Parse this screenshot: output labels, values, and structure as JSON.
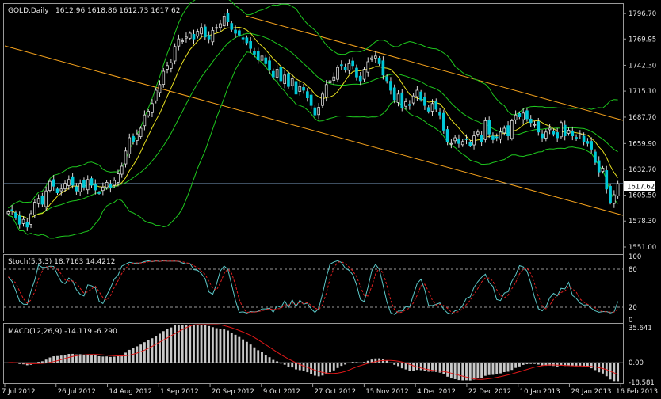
{
  "chart_data": {
    "type": "candlestick",
    "symbol_header": "GOLD,Daily",
    "ohlc_header": "1612.96 1618.86 1612.73 1617.62",
    "price_axis": {
      "range": [
        1546,
        1806
      ],
      "ticks": [
        "1796.70",
        "1769.95",
        "1742.30",
        "1715.10",
        "1687.70",
        "1659.90",
        "1632.70",
        "1605.50",
        "1578.30",
        "1551.00"
      ],
      "tick_values": [
        1796.7,
        1769.95,
        1742.3,
        1715.1,
        1687.7,
        1659.9,
        1632.7,
        1605.5,
        1578.3,
        1551.0
      ],
      "last_price_label": "1617.62",
      "last_price": 1617.62
    },
    "time_axis": {
      "labels": [
        "7 Jul 2012",
        "26 Jul 2012",
        "14 Aug 2012",
        "1 Sep 2012",
        "20 Sep 2012",
        "9 Oct 2012",
        "27 Oct 2012",
        "15 Nov 2012",
        "4 Dec 2012",
        "22 Dec 2012",
        "10 Jan 2013",
        "29 Jan 2013",
        "16 Feb 2013"
      ]
    },
    "closes": [
      1588,
      1590,
      1582,
      1575,
      1580,
      1572,
      1586,
      1598,
      1602,
      1596,
      1610,
      1620,
      1615,
      1608,
      1612,
      1618,
      1622,
      1616,
      1610,
      1618,
      1614,
      1622,
      1616,
      1611,
      1608,
      1614,
      1619,
      1613,
      1621,
      1628,
      1636,
      1652,
      1666,
      1662,
      1670,
      1676,
      1690,
      1694,
      1702,
      1716,
      1722,
      1736,
      1742,
      1745,
      1762,
      1770,
      1768,
      1772,
      1776,
      1770,
      1778,
      1782,
      1772,
      1770,
      1779,
      1782,
      1786,
      1794,
      1788,
      1780,
      1776,
      1774,
      1770,
      1766,
      1760,
      1754,
      1748,
      1752,
      1744,
      1738,
      1730,
      1738,
      1726,
      1732,
      1720,
      1728,
      1712,
      1720,
      1716,
      1708,
      1700,
      1690,
      1698,
      1712,
      1722,
      1726,
      1730,
      1740,
      1742,
      1738,
      1744,
      1742,
      1730,
      1726,
      1738,
      1746,
      1750,
      1752,
      1744,
      1732,
      1726,
      1716,
      1706,
      1712,
      1698,
      1704,
      1700,
      1710,
      1716,
      1706,
      1700,
      1694,
      1702,
      1696,
      1690,
      1674,
      1662,
      1660,
      1666,
      1660,
      1662,
      1664,
      1658,
      1668,
      1672,
      1662,
      1684,
      1670,
      1664,
      1666,
      1672,
      1676,
      1668,
      1684,
      1690,
      1688,
      1692,
      1686,
      1682,
      1680,
      1672,
      1666,
      1672,
      1676,
      1670,
      1666,
      1682,
      1668,
      1674,
      1668,
      1666,
      1670,
      1662,
      1660,
      1654,
      1640,
      1630,
      1634,
      1612,
      1598,
      1606,
      1617.62
    ],
    "indicators": {
      "stoch": {
        "label": "Stoch(5,3,3) 18.7163 14.4212",
        "range": [
          0,
          100
        ],
        "ticks": [
          "100",
          "80",
          "20",
          "0"
        ],
        "tick_values": [
          100,
          80,
          20,
          0
        ],
        "levels": [
          80,
          20
        ]
      },
      "macd": {
        "label": "MACD(12,26,9) -14.119 -6.290",
        "range": [
          -18.581,
          35.641
        ],
        "ticks": [
          "35.641",
          "0.00",
          "-18.581"
        ],
        "tick_values": [
          35.641,
          0,
          -18.581
        ]
      }
    },
    "colors": {
      "background": "#000000",
      "bull": "#000000",
      "bear": "#00c8d8",
      "wick": "#d9d9d9",
      "sma": "#e8e020",
      "bollinger": "#1ec81e",
      "channel": "#f5a21c",
      "macd_hist": "#c8c8c8",
      "signal": "#e01818",
      "stoch_main": "#5cc8c8",
      "stoch_signal": "#e02020",
      "last_price_line": "#7a9cbf",
      "axis_text": "#e6e6e6"
    }
  }
}
